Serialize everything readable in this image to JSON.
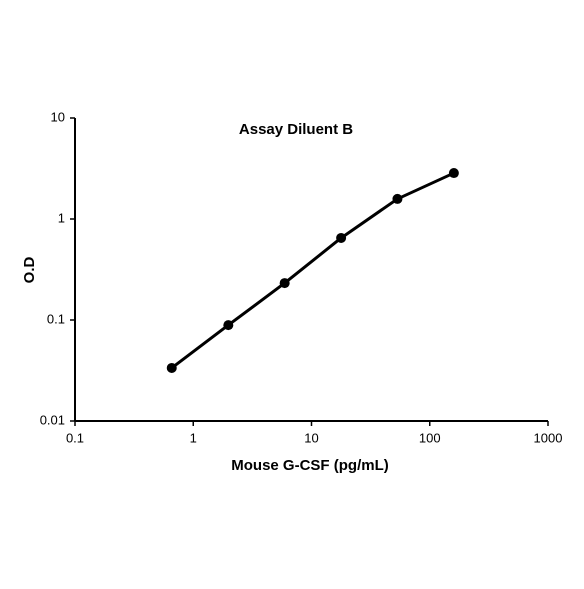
{
  "chart_data": {
    "type": "line",
    "title": "Assay Diluent B",
    "x_label": "Mouse G-CSF (pg/mL)",
    "y_label": "O.D",
    "x": [
      0.658,
      1.98,
      5.93,
      17.8,
      53.3,
      160
    ],
    "series": [
      {
        "name": "Assay Diluent B",
        "color": "#000000",
        "values": [
          0.0335,
          0.089,
          0.232,
          0.649,
          1.58,
          2.85
        ]
      }
    ],
    "xlim": [
      0.1,
      1000
    ],
    "xticks": [
      0.1,
      1,
      10,
      100,
      1000
    ],
    "ylim": [
      0.01,
      10
    ],
    "yticks": [
      0.01,
      0.1,
      1,
      10
    ],
    "x_log": true,
    "y_log": true,
    "grid": false,
    "markers": true
  }
}
